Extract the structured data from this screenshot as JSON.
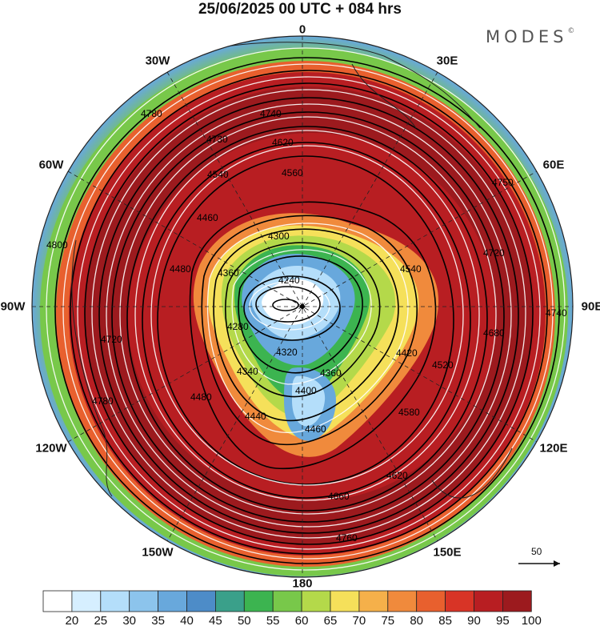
{
  "header": {
    "title": "25/06/2025  00 UTC  + 084 hrs",
    "brand": "MODES"
  },
  "longitude_labels": [
    {
      "text": "0",
      "lon": 0
    },
    {
      "text": "30E",
      "lon": 30
    },
    {
      "text": "60E",
      "lon": 60
    },
    {
      "text": "90E",
      "lon": 90
    },
    {
      "text": "120E",
      "lon": 120
    },
    {
      "text": "150E",
      "lon": 150
    },
    {
      "text": "180",
      "lon": 180
    },
    {
      "text": "150W",
      "lon": -150
    },
    {
      "text": "120W",
      "lon": -120
    },
    {
      "text": "90W",
      "lon": -90
    },
    {
      "text": "60W",
      "lon": -60
    },
    {
      "text": "30W",
      "lon": -30
    }
  ],
  "contour_labels": [
    "4780",
    "4740",
    "4730",
    "4620",
    "4560",
    "4540",
    "4460",
    "4300",
    "4240",
    "4360",
    "4480",
    "4280",
    "4320",
    "4340",
    "4360",
    "4400",
    "4440",
    "4460",
    "4480",
    "4540",
    "4620",
    "4680",
    "4720",
    "4740",
    "4750",
    "4760",
    "4780",
    "4800",
    "4660",
    "4580",
    "4520",
    "4420",
    "4720"
  ],
  "vector_reference": {
    "value": "50"
  },
  "colorbar": {
    "labels": [
      "20",
      "25",
      "30",
      "35",
      "40",
      "45",
      "50",
      "55",
      "60",
      "65",
      "70",
      "75",
      "80",
      "85",
      "90",
      "95",
      "100"
    ],
    "colors": [
      "#ffffff",
      "#d6efff",
      "#b4defa",
      "#8cc4ec",
      "#68a8dc",
      "#4d8cc8",
      "#3aa08a",
      "#3cb450",
      "#78c84a",
      "#b4d94a",
      "#f5e05a",
      "#f5b04a",
      "#f08a3c",
      "#e8602e",
      "#d83426",
      "#b81e22",
      "#9c1a1e"
    ]
  },
  "chart_data": {
    "type": "heatmap",
    "title": "25/06/2025  00 UTC  + 084 hrs",
    "projection": "north polar stereographic",
    "field": "wind speed shading with geopotential height contours and streamlines",
    "colorbar_levels": [
      20,
      25,
      30,
      35,
      40,
      45,
      50,
      55,
      60,
      65,
      70,
      75,
      80,
      85,
      90,
      95,
      100
    ],
    "contour_values": [
      4240,
      4280,
      4300,
      4320,
      4340,
      4360,
      4400,
      4420,
      4440,
      4460,
      4480,
      4520,
      4540,
      4560,
      4580,
      4620,
      4660,
      4680,
      4720,
      4730,
      4740,
      4750,
      4760,
      4780,
      4800
    ],
    "low_center_lon_lat": [
      -95,
      85
    ]
  }
}
